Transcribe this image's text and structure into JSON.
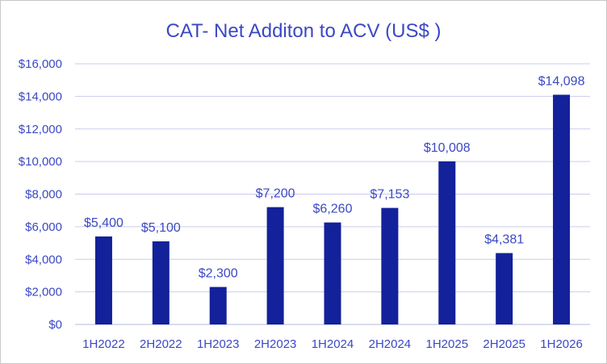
{
  "chart_data": {
    "type": "bar",
    "title": "CAT- Net Additon to ACV (US$ )",
    "xlabel": "",
    "ylabel": "",
    "categories": [
      "1H2022",
      "2H2022",
      "1H2023",
      "2H2023",
      "1H2024",
      "2H2024",
      "1H2025",
      "2H2025",
      "1H2026"
    ],
    "values": [
      5400,
      5100,
      2300,
      7200,
      6260,
      7153,
      10008,
      4381,
      14098
    ],
    "data_labels": [
      "$5,400",
      "$5,100",
      "$2,300",
      "$7,200",
      "$6,260",
      "$7,153",
      "$10,008",
      "$4,381",
      "$14,098"
    ],
    "ylim": [
      0,
      16000
    ],
    "y_ticks": [
      0,
      2000,
      4000,
      6000,
      8000,
      10000,
      12000,
      14000,
      16000
    ],
    "y_tick_labels": [
      "$0",
      "$2,000",
      "$4,000",
      "$6,000",
      "$8,000",
      "$10,000",
      "$12,000",
      "$14,000",
      "$16,000"
    ],
    "grid": true,
    "legend": "none",
    "colors": {
      "bar": "#13219a",
      "text": "#3b48c4",
      "grid": "#c9cdee",
      "axis": "#b3b8e0"
    }
  }
}
